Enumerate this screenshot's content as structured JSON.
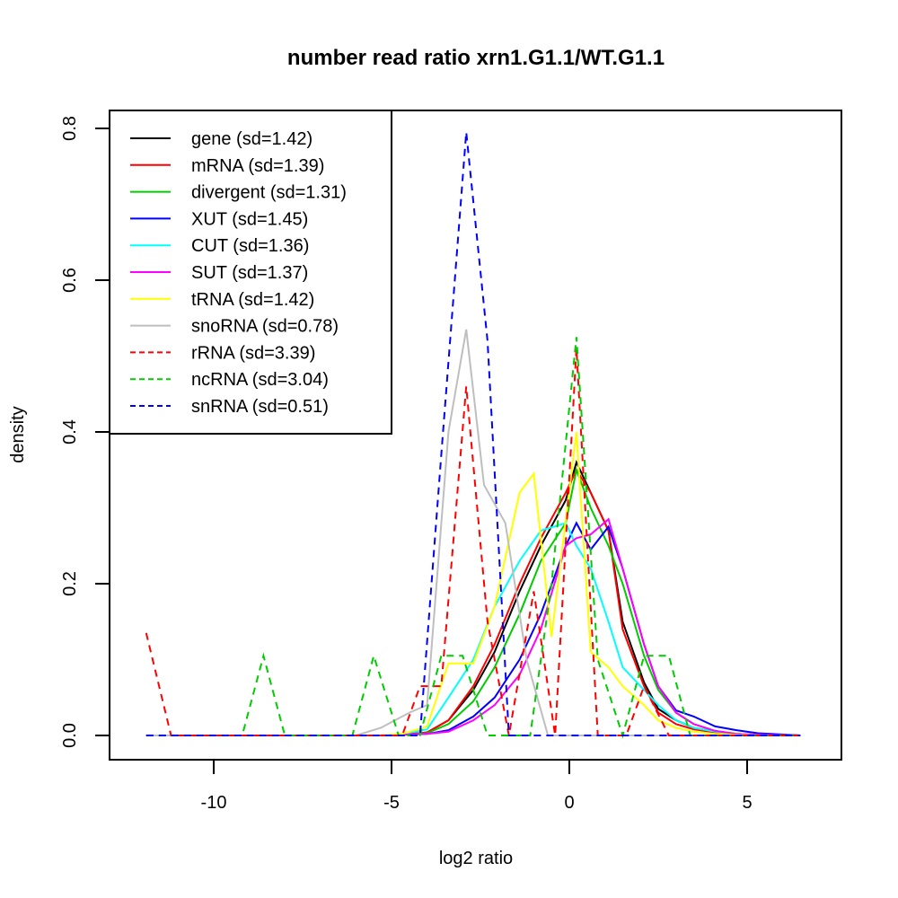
{
  "chart_data": {
    "type": "line",
    "title": "number read ratio xrn1.G1.1/WT.G1.1",
    "xlabel": "log2 ratio",
    "ylabel": "density",
    "xlim": [
      -12.5,
      7.5
    ],
    "ylim": [
      -0.04,
      0.83
    ],
    "xticks": [
      -10,
      -5,
      0,
      5
    ],
    "xtick_labels": [
      "-10",
      "-5",
      "0",
      "5"
    ],
    "yticks": [
      0.0,
      0.2,
      0.4,
      0.6,
      0.8
    ],
    "ytick_labels": [
      "0.0",
      "0.2",
      "0.4",
      "0.6",
      "0.8"
    ],
    "grid": false,
    "legend_position": "top-left",
    "series": [
      {
        "name": "gene (sd=1.42)",
        "color": "#000000",
        "dash": false,
        "x": [
          -11.9,
          -5.3,
          -4.7,
          -4.0,
          -3.4,
          -2.7,
          -2.1,
          -1.4,
          -0.8,
          -0.1,
          0.2,
          0.6,
          1.1,
          1.5,
          2.1,
          2.5,
          3.0,
          3.5,
          4.1,
          4.7,
          5.3,
          6.5
        ],
        "y": [
          0,
          0,
          0.001,
          0.004,
          0.02,
          0.06,
          0.11,
          0.19,
          0.25,
          0.31,
          0.36,
          0.32,
          0.27,
          0.15,
          0.07,
          0.035,
          0.02,
          0.01,
          0.005,
          0.002,
          0.001,
          0
        ]
      },
      {
        "name": "mRNA (sd=1.39)",
        "color": "#ff0000",
        "dash": false,
        "x": [
          -11.9,
          -5.3,
          -4.7,
          -4.0,
          -3.4,
          -2.7,
          -2.1,
          -1.4,
          -0.8,
          -0.1,
          0.2,
          0.6,
          1.1,
          1.5,
          2.1,
          2.5,
          3.0,
          3.5,
          4.1,
          4.7,
          5.3,
          6.5
        ],
        "y": [
          0,
          0,
          0.001,
          0.004,
          0.02,
          0.065,
          0.12,
          0.2,
          0.26,
          0.32,
          0.35,
          0.32,
          0.27,
          0.14,
          0.065,
          0.03,
          0.015,
          0.008,
          0.004,
          0.002,
          0.001,
          0
        ]
      },
      {
        "name": "divergent (sd=1.31)",
        "color": "#00cc00",
        "dash": false,
        "x": [
          -11.9,
          -5.3,
          -4.7,
          -4.0,
          -3.4,
          -2.7,
          -2.1,
          -1.4,
          -0.8,
          -0.1,
          0.2,
          0.6,
          1.1,
          1.5,
          2.1,
          2.5,
          3.0,
          3.5,
          4.1,
          4.7,
          5.3,
          6.5
        ],
        "y": [
          0,
          0,
          0.001,
          0.003,
          0.015,
          0.045,
          0.09,
          0.16,
          0.23,
          0.28,
          0.35,
          0.3,
          0.25,
          0.2,
          0.105,
          0.06,
          0.03,
          0.015,
          0.006,
          0.002,
          0.001,
          0
        ]
      },
      {
        "name": "XUT (sd=1.45)",
        "color": "#0000ff",
        "dash": false,
        "x": [
          -11.9,
          -5.3,
          -4.7,
          -4.0,
          -3.4,
          -2.7,
          -2.1,
          -1.4,
          -0.8,
          -0.1,
          0.2,
          0.6,
          1.1,
          1.5,
          2.1,
          2.5,
          3.0,
          3.5,
          4.1,
          4.7,
          5.3,
          6.5
        ],
        "y": [
          0,
          0,
          0.001,
          0.002,
          0.007,
          0.025,
          0.05,
          0.1,
          0.16,
          0.25,
          0.28,
          0.245,
          0.275,
          0.22,
          0.12,
          0.065,
          0.033,
          0.025,
          0.012,
          0.007,
          0.003,
          0
        ]
      },
      {
        "name": "CUT (sd=1.36)",
        "color": "#00ffff",
        "dash": false,
        "x": [
          -11.9,
          -5.3,
          -4.7,
          -4.0,
          -3.4,
          -2.7,
          -2.1,
          -1.4,
          -0.8,
          -0.1,
          0.2,
          0.6,
          1.1,
          1.5,
          2.1,
          2.5,
          3.0,
          3.5,
          4.1,
          4.7,
          5.3,
          6.5
        ],
        "y": [
          0,
          0,
          0.002,
          0.008,
          0.05,
          0.1,
          0.17,
          0.23,
          0.27,
          0.28,
          0.25,
          0.22,
          0.15,
          0.09,
          0.06,
          0.04,
          0.02,
          0.01,
          0.005,
          0.002,
          0.001,
          0
        ]
      },
      {
        "name": "SUT (sd=1.37)",
        "color": "#ff00ff",
        "dash": false,
        "x": [
          -11.9,
          -5.3,
          -4.7,
          -4.0,
          -3.4,
          -2.7,
          -2.1,
          -1.4,
          -0.8,
          -0.1,
          0.2,
          0.6,
          1.1,
          1.5,
          2.1,
          2.5,
          3.0,
          3.5,
          4.1,
          4.7,
          5.3,
          6.5
        ],
        "y": [
          0,
          0,
          0.001,
          0.002,
          0.005,
          0.02,
          0.04,
          0.08,
          0.14,
          0.25,
          0.26,
          0.265,
          0.285,
          0.22,
          0.12,
          0.065,
          0.03,
          0.015,
          0.006,
          0.002,
          0.001,
          0
        ]
      },
      {
        "name": "tRNA (sd=1.42)",
        "color": "#ffff00",
        "dash": false,
        "x": [
          -11.9,
          -5.3,
          -4.7,
          -4.0,
          -3.4,
          -2.7,
          -2.1,
          -1.4,
          -1.0,
          -0.5,
          0.2,
          0.6,
          1.1,
          1.5,
          2.1,
          2.5,
          3.0,
          3.5,
          4.1,
          4.7,
          5.3,
          6.5
        ],
        "y": [
          0,
          0,
          0.002,
          0.012,
          0.095,
          0.095,
          0.17,
          0.32,
          0.345,
          0.13,
          0.4,
          0.11,
          0.09,
          0.065,
          0.04,
          0.02,
          0.01,
          0.005,
          0.002,
          0.001,
          0,
          0
        ]
      },
      {
        "name": "snoRNA (sd=0.78)",
        "color": "#bebebe",
        "dash": false,
        "x": [
          -11.9,
          -6.0,
          -5.3,
          -4.5,
          -4.0,
          -3.4,
          -2.9,
          -2.4,
          -1.8,
          -1.2,
          -0.6,
          0.2,
          6.5
        ],
        "y": [
          0,
          0,
          0.01,
          0.03,
          0.04,
          0.4,
          0.535,
          0.33,
          0.28,
          0.1,
          0,
          0,
          0
        ]
      },
      {
        "name": "rRNA (sd=3.39)",
        "color": "#ff0000",
        "dash": true,
        "x": [
          -11.9,
          -11.2,
          -4.7,
          -4.2,
          -3.6,
          -2.9,
          -2.3,
          -1.7,
          -1.0,
          -0.4,
          0.2,
          0.8,
          1.6,
          2.1,
          2.8,
          6.5
        ],
        "y": [
          0.135,
          0,
          0,
          0.065,
          0.065,
          0.46,
          0.15,
          0,
          0.19,
          0,
          0.51,
          0,
          0,
          0.065,
          0,
          0
        ]
      },
      {
        "name": "ncRNA (sd=3.04)",
        "color": "#00cc00",
        "dash": true,
        "x": [
          -11.9,
          -9.2,
          -8.6,
          -8.0,
          -6.1,
          -5.5,
          -4.8,
          -4.2,
          -3.6,
          -3.0,
          -2.3,
          -1.7,
          -1.1,
          -0.5,
          0.2,
          0.8,
          1.5,
          2.1,
          2.8,
          3.4,
          6.5
        ],
        "y": [
          0,
          0,
          0.105,
          0,
          0,
          0.105,
          0,
          0,
          0.105,
          0.105,
          0,
          0,
          0,
          0.2,
          0.525,
          0.1,
          0,
          0.105,
          0.105,
          0,
          0
        ]
      },
      {
        "name": "snRNA (sd=0.51)",
        "color": "#0000ff",
        "dash": true,
        "x": [
          -11.9,
          -4.2,
          -3.6,
          -2.9,
          -2.3,
          -1.7,
          6.5
        ],
        "y": [
          0,
          0,
          0.37,
          0.795,
          0.52,
          0,
          0
        ]
      }
    ]
  }
}
